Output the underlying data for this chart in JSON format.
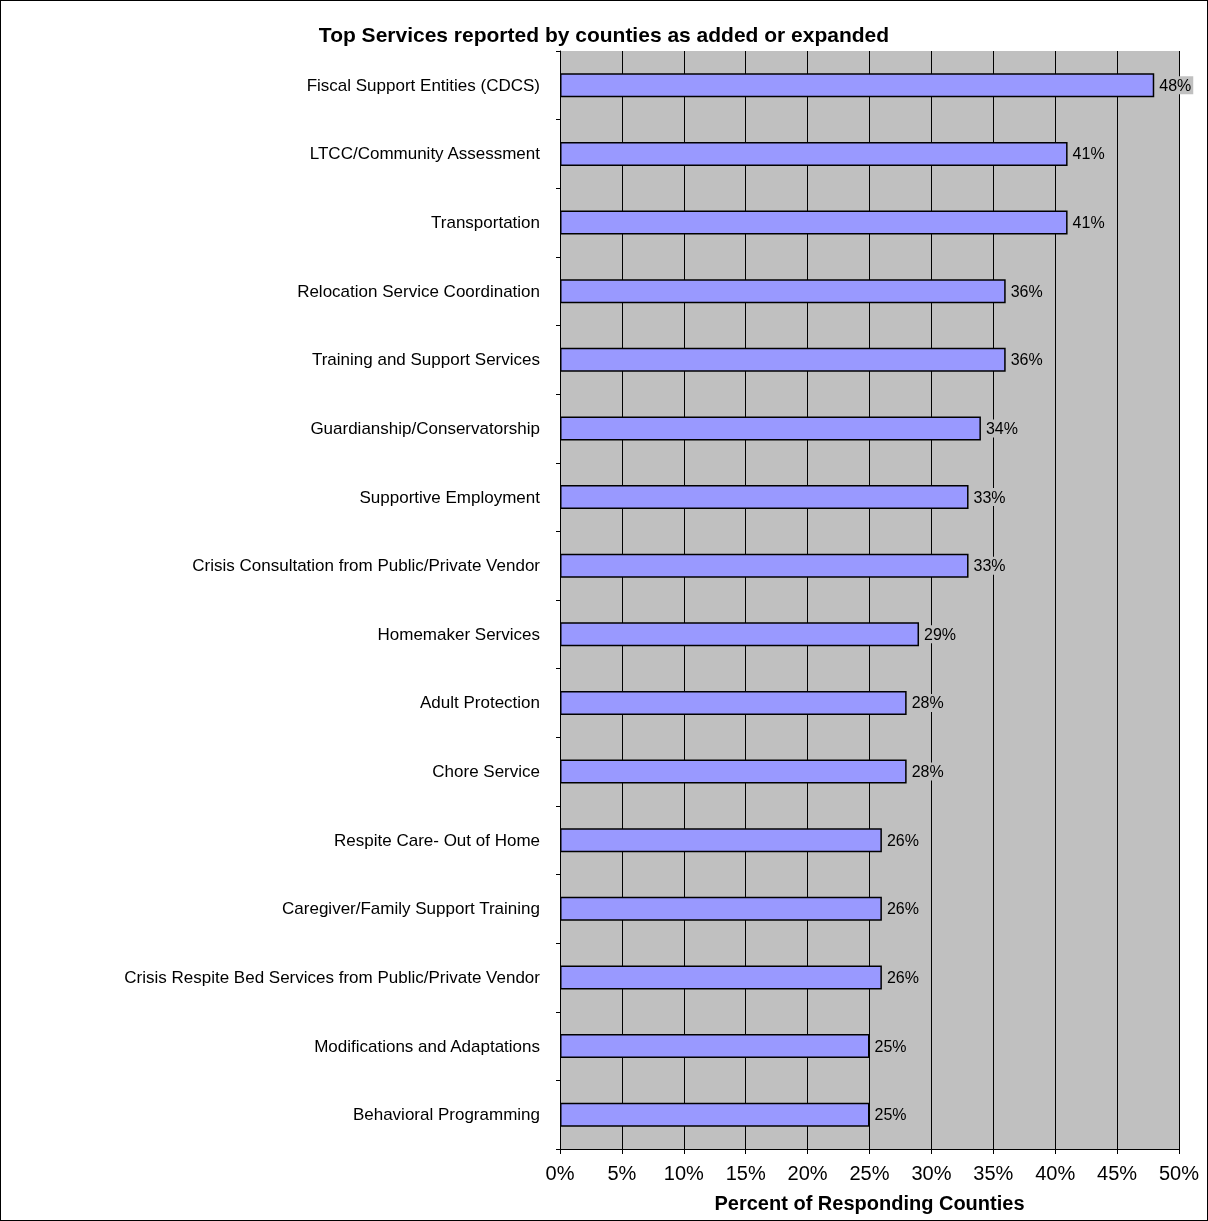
{
  "chart_data": {
    "type": "bar",
    "orientation": "horizontal",
    "title": "Top Services reported by counties as added or expanded",
    "xlabel": "Percent of Responding Counties",
    "categories": [
      "Fiscal Support Entities (CDCS)",
      "LTCC/Community Assessment",
      "Transportation",
      "Relocation Service Coordination",
      "Training and Support Services",
      "Guardianship/Conservatorship",
      "Supportive Employment",
      "Crisis Consultation from Public/Private Vendor",
      "Homemaker Services",
      "Adult Protection",
      "Chore Service",
      "Respite Care- Out of Home",
      "Caregiver/Family Support Training",
      "Crisis Respite Bed Services from Public/Private Vendor",
      "Modifications and Adaptations",
      "Behavioral Programming"
    ],
    "values": [
      48,
      41,
      41,
      36,
      36,
      34,
      33,
      33,
      29,
      28,
      28,
      26,
      26,
      26,
      25,
      25
    ],
    "value_labels": [
      "48%",
      "41%",
      "41%",
      "36%",
      "36%",
      "34%",
      "33%",
      "33%",
      "29%",
      "28%",
      "28%",
      "26%",
      "26%",
      "26%",
      "25%",
      "25%"
    ],
    "color": "#9999ff",
    "xlim": [
      0,
      50
    ],
    "xticks": [
      {
        "value": 0,
        "label": "0%"
      },
      {
        "value": 5,
        "label": "5%"
      },
      {
        "value": 10,
        "label": "10%"
      },
      {
        "value": 15,
        "label": "15%"
      },
      {
        "value": 20,
        "label": "20%"
      },
      {
        "value": 25,
        "label": "25%"
      },
      {
        "value": 30,
        "label": "30%"
      },
      {
        "value": 35,
        "label": "35%"
      },
      {
        "value": 40,
        "label": "40%"
      },
      {
        "value": 45,
        "label": "45%"
      },
      {
        "value": 50,
        "label": "50%"
      }
    ],
    "grid": "x"
  }
}
